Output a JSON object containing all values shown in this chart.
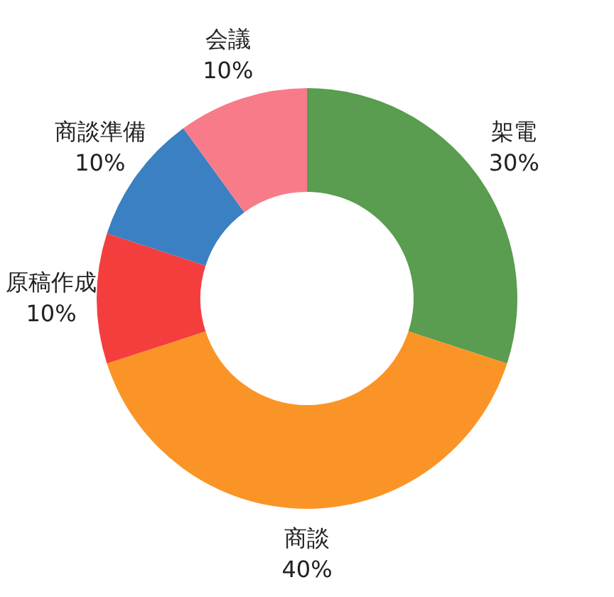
{
  "chart_data": {
    "type": "donut",
    "categories": [
      "架電",
      "商談",
      "原稿作成",
      "商談準備",
      "会議"
    ],
    "values": [
      30,
      40,
      10,
      10,
      10
    ],
    "value_labels": [
      "30%",
      "40%",
      "10%",
      "10%",
      "10%"
    ],
    "colors": [
      "#5a9c50",
      "#fb9426",
      "#f43e3e",
      "#3a80c2",
      "#f87b89"
    ],
    "legend": false
  }
}
